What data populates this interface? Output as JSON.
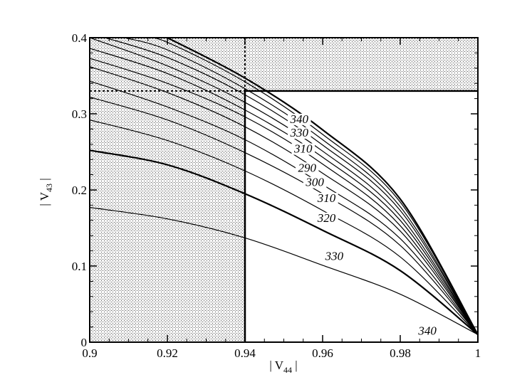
{
  "chart_data": {
    "type": "line",
    "xlabel": "| V44 |",
    "ylabel": "| V43 |",
    "xlim": [
      0.9,
      1.0
    ],
    "ylim": [
      0,
      0.4
    ],
    "x_ticks": [
      "0.9",
      "0.92",
      "0.94",
      "0.96",
      "0.98",
      "1"
    ],
    "y_ticks": [
      "0",
      "0.1",
      "0.2",
      "0.3",
      "0.4"
    ],
    "grid": false,
    "shaded_regions": [
      {
        "name": "left band",
        "x": [
          0.9,
          0.94
        ],
        "y": [
          0,
          0.4
        ]
      },
      {
        "name": "top band",
        "x": [
          0.94,
          1.0
        ],
        "y": [
          0.33,
          0.4
        ]
      }
    ],
    "reference_lines": [
      {
        "orientation": "vertical",
        "x": 0.94,
        "style": "dotted"
      },
      {
        "orientation": "horizontal",
        "y": 0.33,
        "style": "dotted"
      }
    ],
    "series": [
      {
        "label": "330",
        "points": [
          [
            0.9,
            0.177
          ],
          [
            0.92,
            0.162
          ],
          [
            0.94,
            0.137
          ],
          [
            0.96,
            0.101
          ],
          [
            0.98,
            0.063
          ],
          [
            1.0,
            0.01
          ]
        ],
        "label_at": [
          0.963,
          0.108
        ]
      },
      {
        "label": "320",
        "points": [
          [
            0.9,
            0.252
          ],
          [
            0.92,
            0.233
          ],
          [
            0.94,
            0.195
          ],
          [
            0.96,
            0.147
          ],
          [
            0.98,
            0.094
          ],
          [
            1.0,
            0.01
          ]
        ],
        "label_at": [
          0.961,
          0.158
        ]
      },
      {
        "label": "310",
        "points": [
          [
            0.9,
            0.292
          ],
          [
            0.92,
            0.265
          ],
          [
            0.94,
            0.225
          ],
          [
            0.96,
            0.173
          ],
          [
            0.98,
            0.112
          ],
          [
            1.0,
            0.01
          ]
        ],
        "label_at": [
          0.961,
          0.184
        ]
      },
      {
        "label": "300",
        "points": [
          [
            0.9,
            0.322
          ],
          [
            0.92,
            0.292
          ],
          [
            0.94,
            0.249
          ],
          [
            0.96,
            0.195
          ],
          [
            0.98,
            0.127
          ],
          [
            1.0,
            0.01
          ]
        ],
        "label_at": [
          0.958,
          0.205
        ]
      },
      {
        "label": "290",
        "points": [
          [
            0.9,
            0.343
          ],
          [
            0.92,
            0.309
          ],
          [
            0.94,
            0.266
          ],
          [
            0.96,
            0.207
          ],
          [
            0.98,
            0.136
          ],
          [
            1.0,
            0.01
          ]
        ],
        "label_at": [
          0.956,
          0.224
        ]
      },
      {
        "label": "310",
        "points": [
          [
            0.9,
            0.362
          ],
          [
            0.92,
            0.328
          ],
          [
            0.94,
            0.283
          ],
          [
            0.96,
            0.222
          ],
          [
            0.98,
            0.146
          ],
          [
            1.0,
            0.01
          ]
        ],
        "label_at": [
          0.955,
          0.249
        ]
      },
      {
        "label": "330",
        "points": [
          [
            0.9,
            0.373
          ],
          [
            0.92,
            0.34
          ],
          [
            0.94,
            0.296
          ],
          [
            0.96,
            0.234
          ],
          [
            0.98,
            0.153
          ],
          [
            1.0,
            0.01
          ]
        ],
        "label_at": [
          0.954,
          0.27
        ]
      },
      {
        "label": "340",
        "points": [
          [
            0.9,
            0.386
          ],
          [
            0.92,
            0.353
          ],
          [
            0.94,
            0.305
          ],
          [
            0.96,
            0.243
          ],
          [
            0.98,
            0.16
          ],
          [
            1.0,
            0.01
          ]
        ],
        "label_at": [
          0.954,
          0.288
        ]
      },
      {
        "label": "",
        "points": [
          [
            0.9,
            0.4
          ],
          [
            0.92,
            0.363
          ],
          [
            0.94,
            0.315
          ],
          [
            0.96,
            0.251
          ],
          [
            0.98,
            0.166
          ],
          [
            1.0,
            0.01
          ]
        ]
      },
      {
        "label": "",
        "points": [
          [
            0.904,
            0.4
          ],
          [
            0.92,
            0.374
          ],
          [
            0.94,
            0.325
          ],
          [
            0.96,
            0.259
          ],
          [
            0.98,
            0.173
          ],
          [
            1.0,
            0.01
          ]
        ]
      },
      {
        "label": "",
        "points": [
          [
            0.909,
            0.4
          ],
          [
            0.92,
            0.384
          ],
          [
            0.94,
            0.333
          ],
          [
            0.96,
            0.266
          ],
          [
            0.98,
            0.178
          ],
          [
            1.0,
            0.01
          ]
        ]
      },
      {
        "label": "",
        "points": [
          [
            0.914,
            0.4
          ],
          [
            0.92,
            0.394
          ],
          [
            0.94,
            0.342
          ],
          [
            0.96,
            0.273
          ],
          [
            0.98,
            0.184
          ],
          [
            1.0,
            0.01
          ]
        ]
      },
      {
        "label": "",
        "points": [
          [
            0.92,
            0.4
          ],
          [
            0.94,
            0.347
          ],
          [
            0.96,
            0.279
          ],
          [
            0.98,
            0.188
          ],
          [
            1.0,
            0.01
          ]
        ]
      }
    ],
    "annotations": [
      {
        "text": "340",
        "at": [
          0.987,
          0.01
        ]
      }
    ]
  }
}
